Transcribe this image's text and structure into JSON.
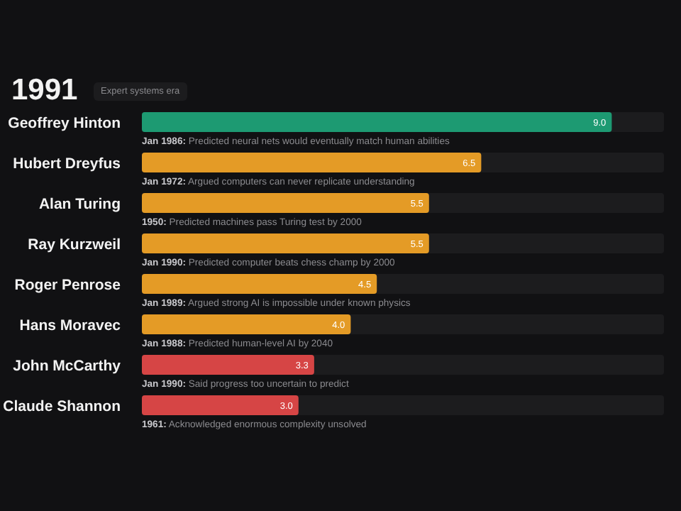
{
  "chart_data": {
    "type": "bar",
    "orientation": "horizontal",
    "title": "1991",
    "subtitle": "Expert systems era",
    "categories": [
      "Geoffrey Hinton",
      "Hubert Dreyfus",
      "Alan Turing",
      "Ray Kurzweil",
      "Roger Penrose",
      "Hans Moravec",
      "John McCarthy",
      "Claude Shannon"
    ],
    "values": [
      9.0,
      6.5,
      5.5,
      5.5,
      4.5,
      4.0,
      3.3,
      3.0
    ],
    "value_labels": [
      "9.0",
      "6.5",
      "5.5",
      "5.5",
      "4.5",
      "4.0",
      "3.3",
      "3.0"
    ],
    "colors": [
      "#1d9a72",
      "#e49b26",
      "#e49b26",
      "#e49b26",
      "#e49b26",
      "#e49b26",
      "#d64545",
      "#d64545"
    ],
    "xlim": [
      0,
      10
    ],
    "tick_labels": false,
    "grid": false,
    "legend": false,
    "annotations": [
      "Jan 1986: Predicted neural nets would eventually match human abilities",
      "Jan 1972: Argued computers can never replicate understanding",
      "1950: Predicted machines pass Turing test by 2000",
      "Jan 1990: Predicted computer beats chess champ by 2000",
      "Jan 1989: Argued strong AI is impossible under known physics",
      "Jan 1988: Predicted human-level AI by 2040",
      "Jan 1990: Said progress too uncertain to predict",
      "1961: Acknowledged enormous complexity unsolved"
    ]
  }
}
